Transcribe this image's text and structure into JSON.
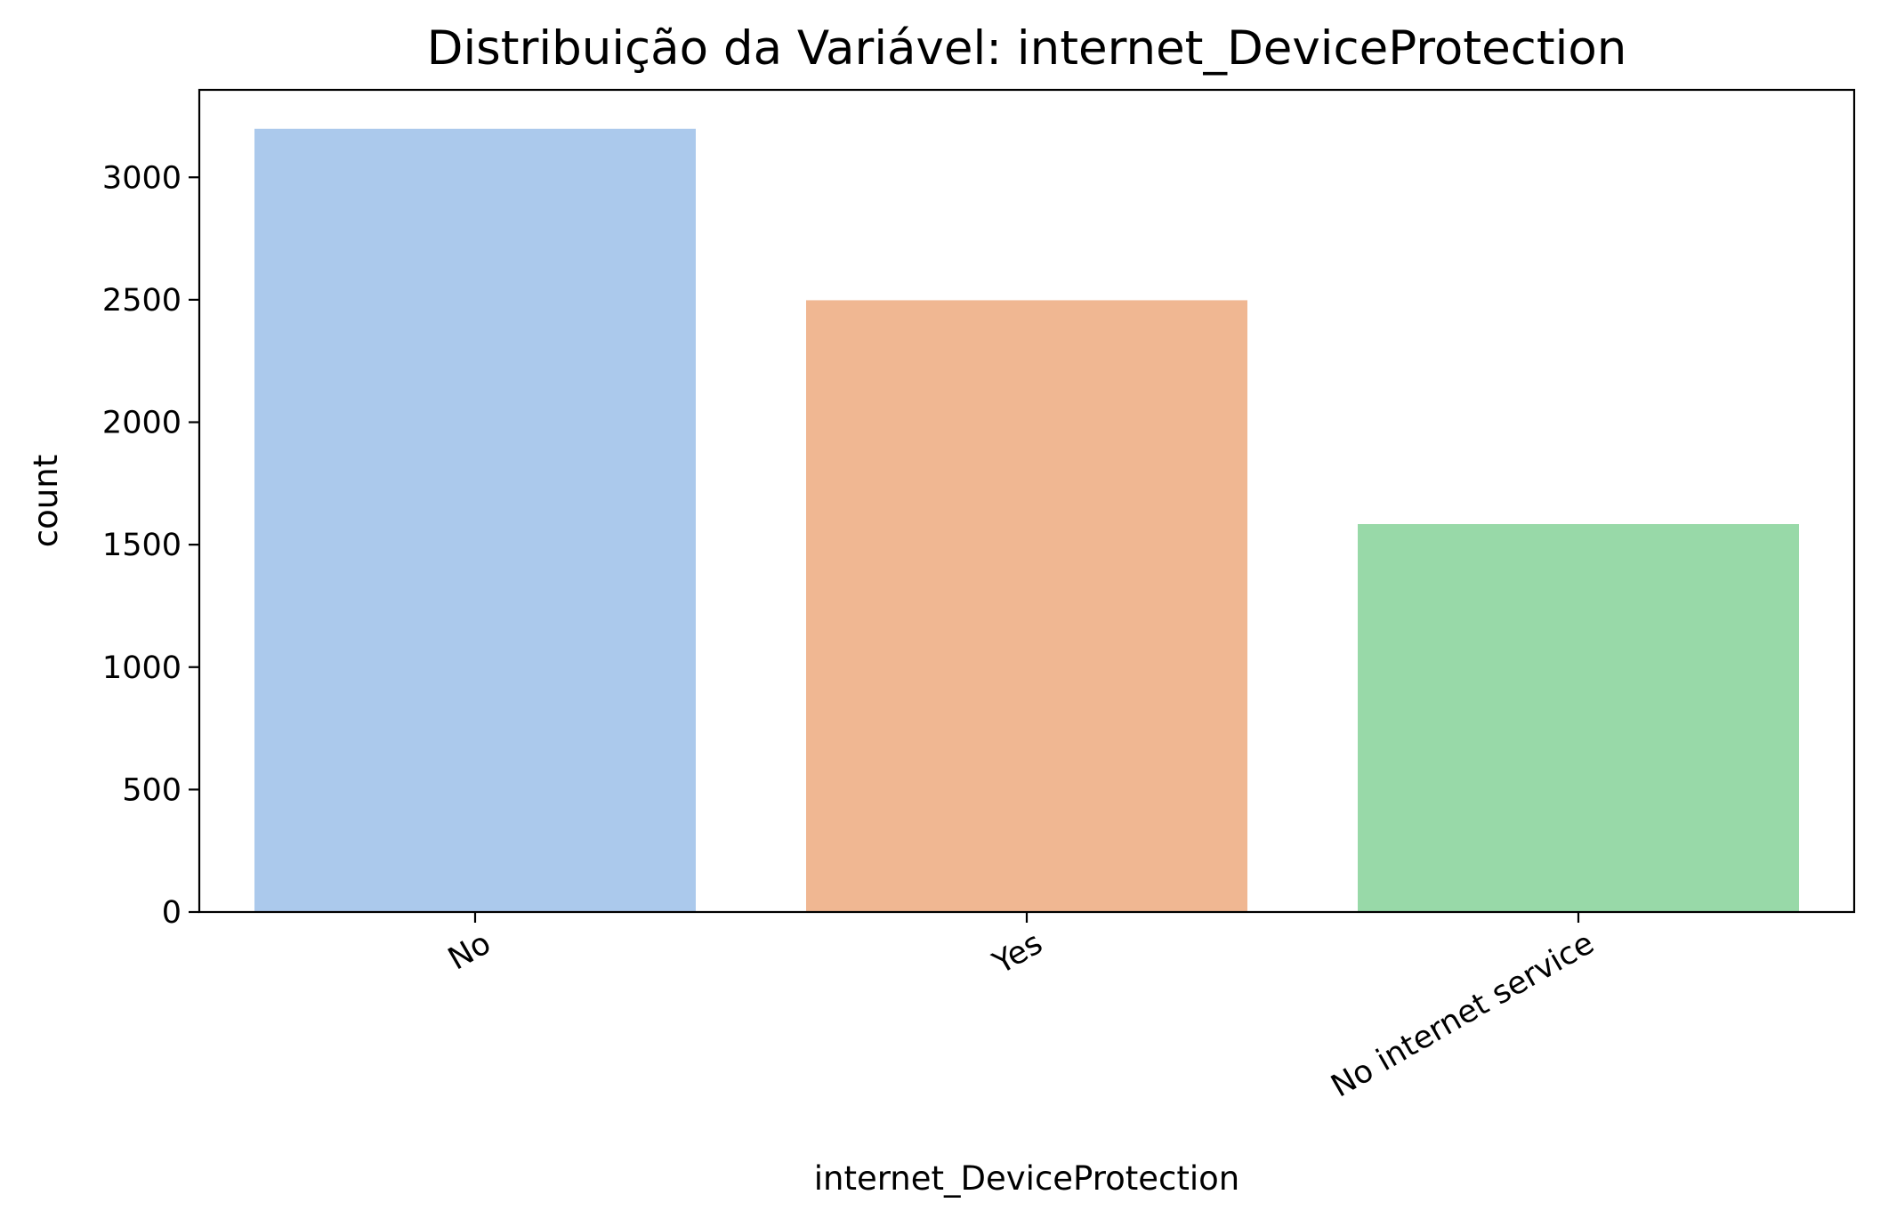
{
  "chart_data": {
    "type": "bar",
    "title": "Distribuição da Variável: internet_DeviceProtection",
    "xlabel": "internet_DeviceProtection",
    "ylabel": "count",
    "categories": [
      "No",
      "Yes",
      "No internet service"
    ],
    "values": [
      3198,
      2498,
      1584
    ],
    "colors": [
      "#abc9ec",
      "#f0b792",
      "#98d9a8"
    ],
    "ylim": [
      0,
      3357
    ],
    "yticks": [
      0,
      500,
      1000,
      1500,
      2000,
      2500,
      3000
    ],
    "grid": false,
    "legend": "none"
  }
}
